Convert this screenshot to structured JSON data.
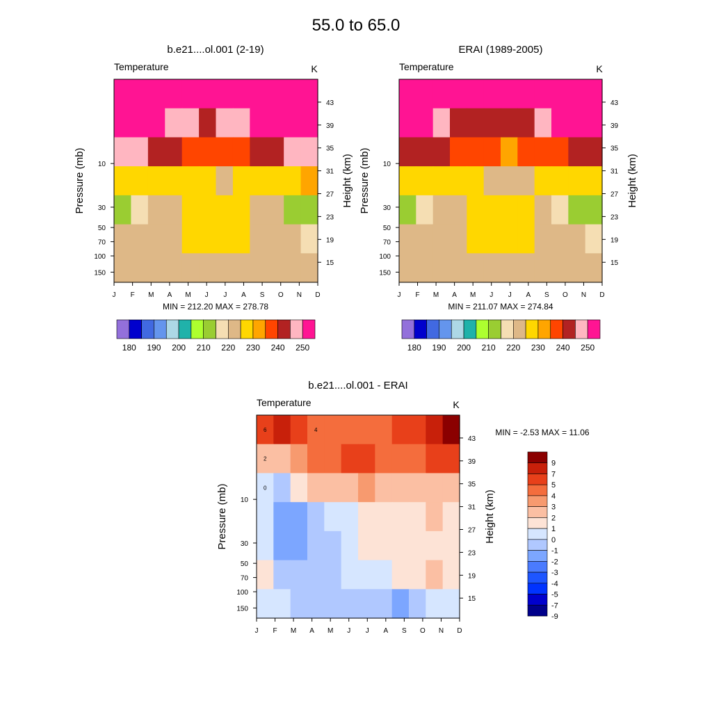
{
  "page_title": "55.0 to  65.0",
  "palette_abs": [
    "#9370db",
    "#0000cd",
    "#4169e1",
    "#6495ed",
    "#add8e6",
    "#20b2aa",
    "#adff2f",
    "#9acd32",
    "#f5deb3",
    "#deb887",
    "#ffd700",
    "#ffa500",
    "#ff4500",
    "#b22222",
    "#ffb6c1",
    "#ff1493"
  ],
  "palette_diff": [
    "#00008b",
    "#0000cd",
    "#0033ff",
    "#1e56ff",
    "#4a7bff",
    "#7ca6ff",
    "#b0c8ff",
    "#d6e6ff",
    "#fde3d6",
    "#fbbfa3",
    "#f79a6f",
    "#f46d3d",
    "#e8401a",
    "#c8200a",
    "#8b0000"
  ],
  "chart_data": [
    {
      "type": "heatmap",
      "title": "b.e21....ol.001 (2-19)",
      "variable": "Temperature",
      "units": "K",
      "months": [
        "J",
        "F",
        "M",
        "A",
        "M",
        "J",
        "J",
        "A",
        "S",
        "O",
        "N",
        "D"
      ],
      "ylabel_left": "Pressure (mb)",
      "ylabel_right": "Height (km)",
      "pressure_ticks": [
        {
          "label": "10",
          "value": 10
        },
        {
          "label": "30",
          "value": 30
        },
        {
          "label": "50",
          "value": 50
        },
        {
          "label": "70",
          "value": 70
        },
        {
          "label": "100",
          "value": 100
        },
        {
          "label": "150",
          "value": 150
        }
      ],
      "height_ticks": [
        "43",
        "39",
        "35",
        "31",
        "27",
        "23",
        "19",
        "15"
      ],
      "height_values": [
        43,
        39,
        35,
        31,
        27,
        23,
        19,
        15
      ],
      "height_range_km": [
        11.5,
        47
      ],
      "stat_text": "MIN = 212.20  MAX = 278.78",
      "min": 212.2,
      "max": 278.78,
      "colorbar_labels": [
        "180",
        "190",
        "200",
        "210",
        "220",
        "230",
        "240",
        "250"
      ],
      "rows": [
        [
          272,
          270,
          262,
          255,
          250,
          250,
          252,
          256,
          262,
          268,
          272,
          274
        ],
        [
          262,
          260,
          254,
          248,
          245,
          244,
          245,
          248,
          252,
          258,
          262,
          264
        ],
        [
          246,
          245,
          243,
          240,
          237,
          235,
          235,
          237,
          240,
          244,
          246,
          247
        ],
        [
          229,
          229,
          228,
          228,
          226,
          225,
          224,
          225,
          227,
          228,
          228,
          230
        ],
        [
          212,
          216,
          222,
          224,
          226,
          228,
          228,
          227,
          224,
          220,
          214,
          213
        ],
        [
          220,
          221,
          222,
          223,
          225,
          226,
          226,
          225,
          224,
          222,
          220,
          219
        ],
        [
          221,
          221,
          221,
          222,
          223,
          224,
          224,
          223,
          223,
          222,
          221,
          221
        ]
      ]
    },
    {
      "type": "heatmap",
      "title": "ERAI (1989-2005)",
      "variable": "Temperature",
      "units": "K",
      "months": [
        "J",
        "F",
        "M",
        "A",
        "M",
        "J",
        "J",
        "A",
        "S",
        "O",
        "N",
        "D"
      ],
      "ylabel_left": "Pressure (mb)",
      "ylabel_right": "Height (km)",
      "pressure_ticks": [
        {
          "label": "10",
          "value": 10
        },
        {
          "label": "30",
          "value": 30
        },
        {
          "label": "50",
          "value": 50
        },
        {
          "label": "70",
          "value": 70
        },
        {
          "label": "100",
          "value": 100
        },
        {
          "label": "150",
          "value": 150
        }
      ],
      "height_ticks": [
        "43",
        "39",
        "35",
        "31",
        "27",
        "23",
        "19",
        "15"
      ],
      "height_values": [
        43,
        39,
        35,
        31,
        27,
        23,
        19,
        15
      ],
      "height_range_km": [
        11.5,
        47
      ],
      "stat_text": "MIN = 211.07  MAX = 274.84",
      "min": 211.07,
      "max": 274.84,
      "colorbar_labels": [
        "180",
        "190",
        "200",
        "210",
        "220",
        "230",
        "240",
        "250"
      ],
      "rows": [
        [
          262,
          262,
          258,
          253,
          250,
          250,
          251,
          254,
          258,
          262,
          264,
          265
        ],
        [
          258,
          255,
          248,
          244,
          242,
          241,
          242,
          244,
          247,
          250,
          254,
          258
        ],
        [
          244,
          243,
          240,
          238,
          236,
          235,
          234,
          235,
          237,
          239,
          241,
          243
        ],
        [
          228,
          228,
          227,
          227,
          226,
          224,
          223,
          224,
          225,
          225,
          227,
          229
        ],
        [
          212,
          218,
          222,
          224,
          226,
          227,
          227,
          226,
          223,
          218,
          212,
          212
        ],
        [
          220,
          221,
          222,
          223,
          225,
          226,
          226,
          225,
          224,
          222,
          220,
          219
        ],
        [
          221,
          221,
          221,
          222,
          223,
          224,
          224,
          223,
          223,
          222,
          221,
          221
        ]
      ]
    },
    {
      "type": "heatmap",
      "title": "b.e21....ol.001 - ERAI",
      "variable": "Temperature",
      "units": "K",
      "months": [
        "J",
        "F",
        "M",
        "A",
        "M",
        "J",
        "J",
        "A",
        "S",
        "O",
        "N",
        "D"
      ],
      "ylabel_left": "Pressure (mb)",
      "ylabel_right": "Height (km)",
      "pressure_ticks": [
        {
          "label": "10",
          "value": 10
        },
        {
          "label": "30",
          "value": 30
        },
        {
          "label": "50",
          "value": 50
        },
        {
          "label": "70",
          "value": 70
        },
        {
          "label": "100",
          "value": 100
        },
        {
          "label": "150",
          "value": 150
        }
      ],
      "height_ticks": [
        "43",
        "39",
        "35",
        "31",
        "27",
        "23",
        "19",
        "15"
      ],
      "height_values": [
        43,
        39,
        35,
        31,
        27,
        23,
        19,
        15
      ],
      "height_range_km": [
        11.5,
        47
      ],
      "stat_text": "MIN =  -2.53  MAX =  11.06",
      "min": -2.53,
      "max": 11.06,
      "colorbar_labels": [
        "9",
        "7",
        "5",
        "4",
        "3",
        "2",
        "1",
        "0",
        "-1",
        "-2",
        "-3",
        "-4",
        "-5",
        "-7",
        "-9"
      ],
      "contour_labels": [
        "0",
        "2",
        "4",
        "6"
      ],
      "rows": [
        [
          6,
          7,
          5,
          4,
          4,
          4,
          4,
          4,
          5,
          6,
          8,
          9
        ],
        [
          2,
          2,
          3,
          4,
          4,
          5,
          5,
          4,
          4,
          4,
          5,
          6
        ],
        [
          0,
          -1,
          1,
          2,
          2,
          2,
          3,
          2,
          2,
          2,
          2,
          2
        ],
        [
          0,
          -2,
          -2,
          -1,
          0,
          0,
          1,
          1,
          1,
          1,
          2,
          1
        ],
        [
          0,
          -2,
          -2,
          -1,
          -1,
          0,
          1,
          1,
          1,
          1,
          1,
          1
        ],
        [
          1,
          -1,
          -1,
          -1,
          -1,
          0,
          0,
          0,
          1,
          1,
          2,
          1
        ],
        [
          0,
          0,
          -1,
          -1,
          -1,
          -1,
          -1,
          -1,
          -2,
          -1,
          0,
          0
        ]
      ]
    }
  ]
}
